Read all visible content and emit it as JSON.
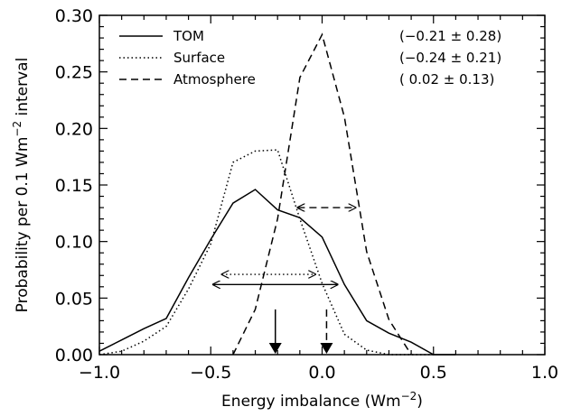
{
  "chart_data": {
    "type": "line",
    "xlabel": "Energy imbalance (Wm",
    "xlabel_sup": "−2",
    "xlabel_tail": ")",
    "ylabel": "Probability per 0.1 Wm",
    "ylabel_sup": "−2",
    "ylabel_tail": " interval",
    "xlim": [
      -1.0,
      1.0
    ],
    "ylim": [
      0.0,
      0.3
    ],
    "xticks": [
      -1.0,
      -0.5,
      0.0,
      0.5,
      1.0
    ],
    "xtick_labels": [
      "−1.0",
      "−0.5",
      "0.0",
      "0.5",
      "1.0"
    ],
    "yticks": [
      0.0,
      0.05,
      0.1,
      0.15,
      0.2,
      0.25,
      0.3
    ],
    "ytick_labels": [
      "0.00",
      "0.05",
      "0.10",
      "0.15",
      "0.20",
      "0.25",
      "0.30"
    ],
    "grid": false,
    "legend_position": "top-left",
    "series": [
      {
        "name": "TOM",
        "style": "solid",
        "stat": "(−0.21 ± 0.28)",
        "mean": -0.21,
        "halfwidth": 0.28,
        "x": [
          -1.0,
          -0.9,
          -0.8,
          -0.7,
          -0.6,
          -0.5,
          -0.4,
          -0.3,
          -0.2,
          -0.1,
          0.0,
          0.1,
          0.2,
          0.3,
          0.4,
          0.5,
          0.6
        ],
        "y": [
          0.003,
          0.013,
          0.023,
          0.032,
          0.068,
          0.102,
          0.134,
          0.146,
          0.128,
          0.121,
          0.104,
          0.062,
          0.03,
          0.019,
          0.011,
          0.0,
          0.0
        ]
      },
      {
        "name": "Surface",
        "style": "dotted",
        "stat": "(−0.24 ± 0.21)",
        "mean": -0.24,
        "halfwidth": 0.21,
        "x": [
          -1.0,
          -0.9,
          -0.8,
          -0.7,
          -0.6,
          -0.5,
          -0.4,
          -0.3,
          -0.2,
          -0.1,
          0.0,
          0.1,
          0.2,
          0.3,
          0.4,
          0.5
        ],
        "y": [
          0.0,
          0.003,
          0.012,
          0.025,
          0.058,
          0.098,
          0.17,
          0.18,
          0.181,
          0.12,
          0.063,
          0.018,
          0.004,
          0.0,
          0.0,
          0.0
        ]
      },
      {
        "name": "Atmosphere",
        "style": "dashed",
        "stat": "( 0.02 ± 0.13)",
        "mean": 0.02,
        "halfwidth": 0.13,
        "x": [
          -0.4,
          -0.3,
          -0.2,
          -0.1,
          0.0,
          0.1,
          0.2,
          0.3,
          0.4
        ],
        "y": [
          0.0,
          0.04,
          0.12,
          0.245,
          0.283,
          0.21,
          0.091,
          0.031,
          0.0
        ]
      }
    ]
  }
}
